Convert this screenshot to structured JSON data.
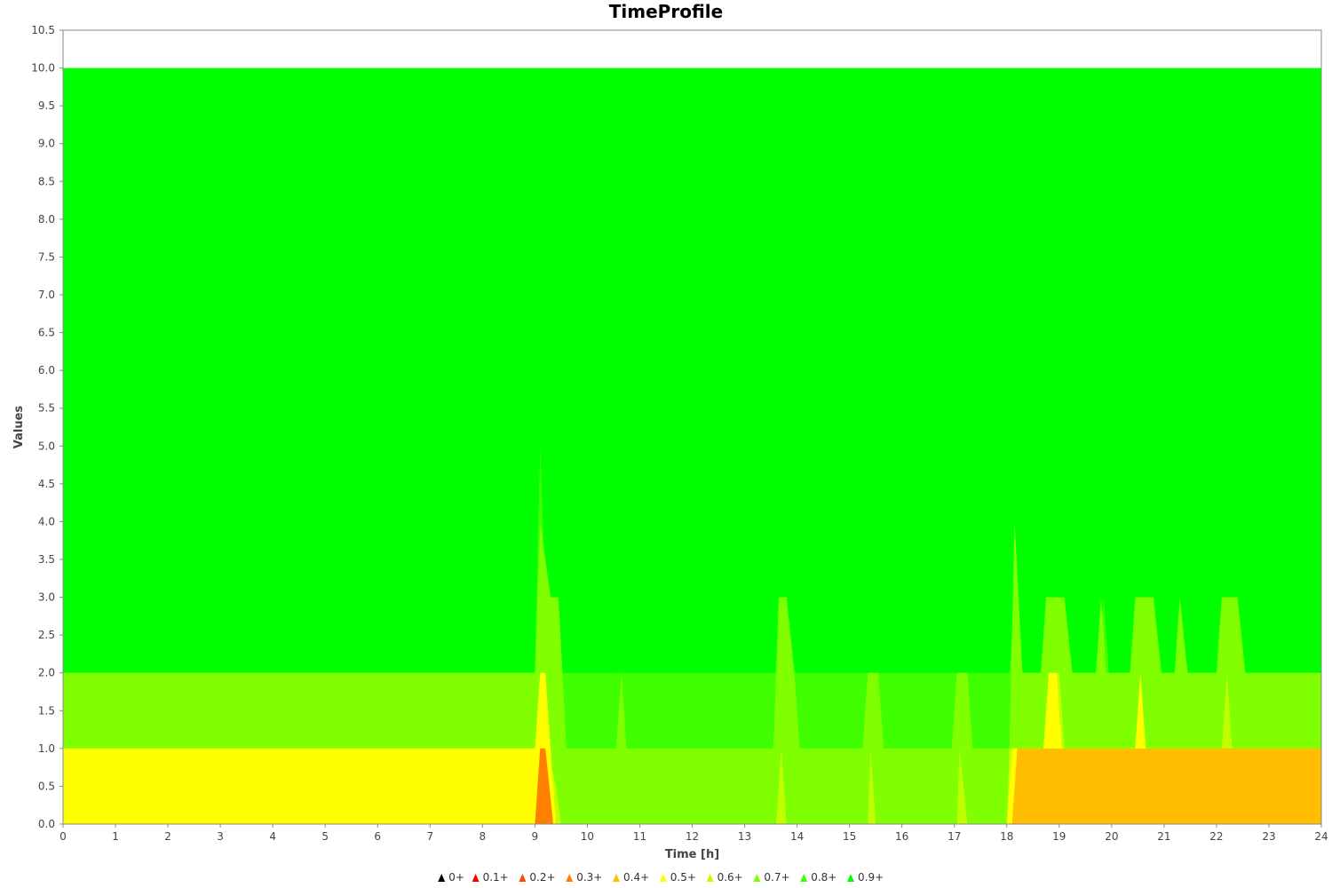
{
  "chart_data": {
    "type": "area",
    "title": "TimeProfile",
    "xlabel": "Time [h]",
    "ylabel": "Values",
    "xlim": [
      0,
      24
    ],
    "ylim": [
      0,
      10.5
    ],
    "x_ticks": [
      "0",
      "1",
      "2",
      "3",
      "4",
      "5",
      "6",
      "7",
      "8",
      "9",
      "10",
      "11",
      "12",
      "13",
      "14",
      "15",
      "16",
      "17",
      "18",
      "19",
      "20",
      "21",
      "22",
      "23",
      "24"
    ],
    "y_ticks": [
      "0.0",
      "0.5",
      "1.0",
      "1.5",
      "2.0",
      "2.5",
      "3.0",
      "3.5",
      "4.0",
      "4.5",
      "5.0",
      "5.5",
      "6.0",
      "6.5",
      "7.0",
      "7.5",
      "8.0",
      "8.5",
      "9.0",
      "9.5",
      "10.0",
      "10.5"
    ],
    "grid": false,
    "legend_position": "bottom",
    "series": [
      {
        "name": "0+",
        "color": "#000000",
        "points": []
      },
      {
        "name": "0.1+",
        "color": "#ff0000",
        "points": []
      },
      {
        "name": "0.2+",
        "color": "#ff4500",
        "points": []
      },
      {
        "name": "0.3+",
        "color": "#ff8000",
        "points": [
          [
            0,
            0
          ],
          [
            9.0,
            0
          ],
          [
            9.1,
            1.0
          ],
          [
            9.2,
            1.0
          ],
          [
            9.35,
            0
          ],
          [
            24,
            0
          ]
        ]
      },
      {
        "name": "0.4+",
        "color": "#ffbf00",
        "points": [
          [
            0,
            0
          ],
          [
            18.1,
            0
          ],
          [
            18.2,
            1.0
          ],
          [
            24,
            1.0
          ]
        ]
      },
      {
        "name": "0.5+",
        "color": "#ffff00",
        "points": [
          [
            0,
            1.0
          ],
          [
            9.0,
            1.0
          ],
          [
            9.1,
            2.0
          ],
          [
            9.2,
            2.0
          ],
          [
            9.3,
            1.0
          ],
          [
            9.4,
            0
          ],
          [
            13.65,
            0
          ],
          [
            13.7,
            0
          ],
          [
            15.35,
            0
          ],
          [
            17.0,
            0
          ],
          [
            18.0,
            0
          ],
          [
            18.1,
            1.0
          ],
          [
            18.7,
            1.0
          ],
          [
            18.8,
            2.0
          ],
          [
            18.95,
            2.0
          ],
          [
            19.05,
            1.0
          ],
          [
            20.45,
            1.0
          ],
          [
            20.55,
            2.0
          ],
          [
            20.65,
            1.0
          ],
          [
            24,
            1.0
          ]
        ]
      },
      {
        "name": "0.6+",
        "color": "#bfff00",
        "points": [
          [
            0,
            1.0
          ],
          [
            9.05,
            1.0
          ],
          [
            9.15,
            2.0
          ],
          [
            9.25,
            1.0
          ],
          [
            9.4,
            0.5
          ],
          [
            9.5,
            0
          ],
          [
            13.6,
            0
          ],
          [
            13.7,
            1.0
          ],
          [
            13.8,
            0
          ],
          [
            15.35,
            0
          ],
          [
            15.4,
            1.0
          ],
          [
            15.5,
            0
          ],
          [
            17.05,
            0
          ],
          [
            17.1,
            1.0
          ],
          [
            17.25,
            0
          ],
          [
            18.0,
            0
          ],
          [
            18.05,
            1.0
          ],
          [
            18.7,
            1.0
          ],
          [
            18.8,
            2.0
          ],
          [
            19.0,
            2.0
          ],
          [
            19.1,
            1.0
          ],
          [
            20.45,
            1.0
          ],
          [
            20.55,
            2.0
          ],
          [
            20.65,
            1.0
          ],
          [
            22.1,
            1.0
          ],
          [
            22.2,
            2.0
          ],
          [
            22.3,
            1.0
          ],
          [
            24,
            1.0
          ]
        ]
      },
      {
        "name": "0.7+",
        "color": "#80ff00",
        "points": [
          [
            0,
            2.0
          ],
          [
            9.0,
            2.0
          ],
          [
            9.1,
            4.0
          ],
          [
            9.3,
            3.0
          ],
          [
            9.45,
            3.0
          ],
          [
            9.6,
            1.0
          ],
          [
            10.55,
            1.0
          ],
          [
            10.65,
            2.0
          ],
          [
            10.75,
            1.0
          ],
          [
            13.55,
            1.0
          ],
          [
            13.65,
            3.0
          ],
          [
            13.8,
            3.0
          ],
          [
            13.95,
            2.0
          ],
          [
            14.05,
            1.0
          ],
          [
            15.25,
            1.0
          ],
          [
            15.35,
            2.0
          ],
          [
            15.55,
            2.0
          ],
          [
            15.65,
            1.0
          ],
          [
            16.95,
            1.0
          ],
          [
            17.05,
            2.0
          ],
          [
            17.25,
            2.0
          ],
          [
            17.35,
            1.0
          ],
          [
            18.05,
            1.0
          ],
          [
            18.15,
            4.0
          ],
          [
            18.3,
            2.0
          ],
          [
            18.65,
            2.0
          ],
          [
            18.75,
            3.0
          ],
          [
            19.1,
            3.0
          ],
          [
            19.25,
            2.0
          ],
          [
            19.7,
            2.0
          ],
          [
            19.8,
            3.0
          ],
          [
            19.9,
            2.0
          ],
          [
            20.35,
            2.0
          ],
          [
            20.45,
            3.0
          ],
          [
            20.8,
            3.0
          ],
          [
            20.95,
            2.0
          ],
          [
            21.2,
            2.0
          ],
          [
            21.3,
            3.0
          ],
          [
            21.45,
            2.0
          ],
          [
            22.0,
            2.0
          ],
          [
            22.1,
            3.0
          ],
          [
            22.4,
            3.0
          ],
          [
            22.55,
            2.0
          ],
          [
            24,
            2.0
          ]
        ]
      },
      {
        "name": "0.8+",
        "color": "#40ff00",
        "points": [
          [
            0,
            2.0
          ],
          [
            9.0,
            2.0
          ],
          [
            9.1,
            5.0
          ],
          [
            9.2,
            3.0
          ],
          [
            9.3,
            2.0
          ],
          [
            13.6,
            2.0
          ],
          [
            13.7,
            3.0
          ],
          [
            13.8,
            2.0
          ],
          [
            18.05,
            2.0
          ],
          [
            18.15,
            3.0
          ],
          [
            18.25,
            2.0
          ],
          [
            19.75,
            2.0
          ],
          [
            19.85,
            3.0
          ],
          [
            19.95,
            2.0
          ],
          [
            24,
            2.0
          ]
        ]
      },
      {
        "name": "0.9+",
        "color": "#00ff00",
        "points": [
          [
            0,
            10.0
          ],
          [
            24,
            10.0
          ]
        ]
      }
    ]
  }
}
